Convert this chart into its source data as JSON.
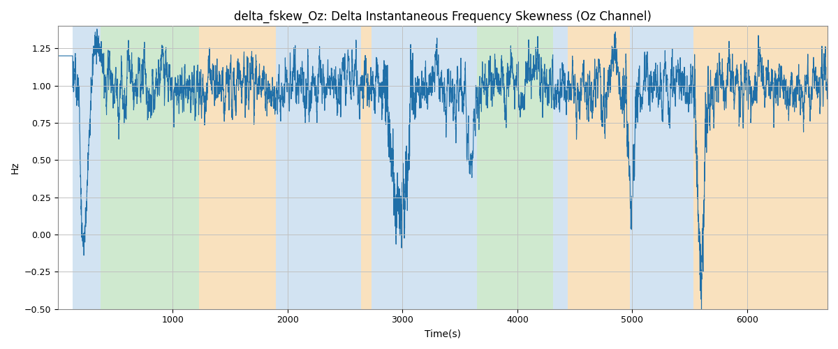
{
  "title": "delta_fskew_Oz: Delta Instantaneous Frequency Skewness (Oz Channel)",
  "xlabel": "Time(s)",
  "ylabel": "Hz",
  "xlim": [
    0,
    6700
  ],
  "ylim": [
    -0.5,
    1.4
  ],
  "yticks": [
    -0.5,
    -0.25,
    0.0,
    0.25,
    0.5,
    0.75,
    1.0,
    1.25
  ],
  "xticks": [
    1000,
    2000,
    3000,
    4000,
    5000,
    6000
  ],
  "line_color": "#1f6fa8",
  "line_width": 0.8,
  "bg_color": "#ffffff",
  "grid_color": "#c0c0c0",
  "colored_bands": [
    {
      "xmin": 130,
      "xmax": 370,
      "color": "#aecde8",
      "alpha": 0.55
    },
    {
      "xmin": 370,
      "xmax": 1230,
      "color": "#a8d8a8",
      "alpha": 0.55
    },
    {
      "xmin": 1230,
      "xmax": 1900,
      "color": "#f5c98a",
      "alpha": 0.55
    },
    {
      "xmin": 1900,
      "xmax": 2640,
      "color": "#aecde8",
      "alpha": 0.55
    },
    {
      "xmin": 2640,
      "xmax": 2730,
      "color": "#f5c98a",
      "alpha": 0.55
    },
    {
      "xmin": 2730,
      "xmax": 3650,
      "color": "#aecde8",
      "alpha": 0.55
    },
    {
      "xmin": 3650,
      "xmax": 4310,
      "color": "#a8d8a8",
      "alpha": 0.55
    },
    {
      "xmin": 4310,
      "xmax": 4440,
      "color": "#aecde8",
      "alpha": 0.55
    },
    {
      "xmin": 4440,
      "xmax": 4980,
      "color": "#f5c98a",
      "alpha": 0.55
    },
    {
      "xmin": 4980,
      "xmax": 5530,
      "color": "#aecde8",
      "alpha": 0.55
    },
    {
      "xmin": 5530,
      "xmax": 6700,
      "color": "#f5c98a",
      "alpha": 0.55
    }
  ],
  "n_points": 6700,
  "base_mean": 1.0,
  "title_fontsize": 12,
  "label_fontsize": 10,
  "tick_fontsize": 9
}
